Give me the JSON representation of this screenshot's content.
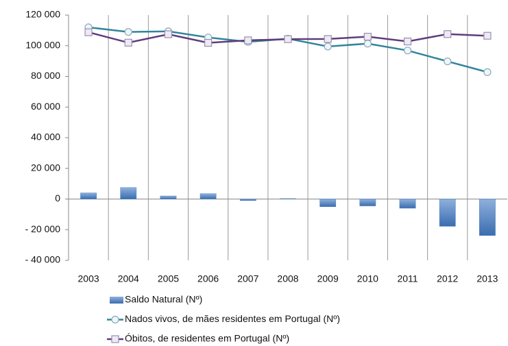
{
  "chart_data": {
    "type": "combo",
    "categories": [
      "2003",
      "2004",
      "2005",
      "2006",
      "2007",
      "2008",
      "2009",
      "2010",
      "2011",
      "2012",
      "2013"
    ],
    "series": [
      {
        "name": "Saldo Natural (Nº)",
        "type": "bar",
        "color": "#4f81bd",
        "values": [
          4000,
          7500,
          2000,
          3500,
          -1000,
          300,
          -5000,
          -4500,
          -6000,
          -17800,
          -23800
        ]
      },
      {
        "name": "Nados vivos, de mães residentes em Portugal (Nº)",
        "type": "line",
        "marker": "circle",
        "color": "#31849b",
        "values": [
          112000,
          109000,
          109400,
          105400,
          102500,
          104600,
          99500,
          101400,
          96900,
          89800,
          82800
        ]
      },
      {
        "name": "Óbitos, de residentes em Portugal (Nº)",
        "type": "line",
        "marker": "square",
        "color": "#5f3c7c",
        "values": [
          108800,
          102000,
          107500,
          101900,
          103500,
          104300,
          104400,
          105900,
          102800,
          107600,
          106500
        ]
      }
    ],
    "ylim": [
      -40000,
      120000
    ],
    "yticks": [
      {
        "value": -40000,
        "label": "- 40 000"
      },
      {
        "value": -20000,
        "label": "- 20 000"
      },
      0,
      {
        "value": 20000,
        "label": "20 000"
      },
      {
        "value": 40000,
        "label": "40 000"
      },
      {
        "value": 60000,
        "label": "60 000"
      },
      {
        "value": 80000,
        "label": "80 000"
      },
      {
        "value": 100000,
        "label": "100 000"
      },
      {
        "value": 120000,
        "label": "120 000"
      }
    ],
    "grid": "x",
    "legend": "bottom"
  }
}
